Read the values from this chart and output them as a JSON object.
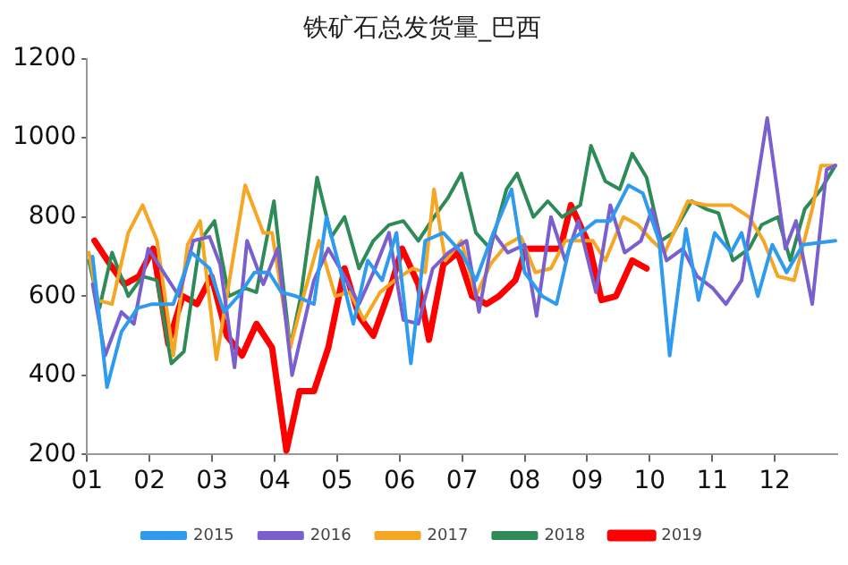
{
  "chart_data": {
    "type": "line",
    "title": "铁矿石总发货量_巴西",
    "xlim": [
      1,
      13
    ],
    "xticks": [
      {
        "value": 1,
        "label": "01"
      },
      {
        "value": 2,
        "label": "02"
      },
      {
        "value": 3,
        "label": "03"
      },
      {
        "value": 4,
        "label": "04"
      },
      {
        "value": 5,
        "label": "05"
      },
      {
        "value": 6,
        "label": "06"
      },
      {
        "value": 7,
        "label": "07"
      },
      {
        "value": 8,
        "label": "08"
      },
      {
        "value": 9,
        "label": "09"
      },
      {
        "value": 10,
        "label": "10"
      },
      {
        "value": 11,
        "label": "11"
      },
      {
        "value": 12,
        "label": "12"
      }
    ],
    "ylim": [
      200,
      1200
    ],
    "yticks": [
      200,
      400,
      600,
      800,
      1000,
      1200
    ],
    "grid": false,
    "legend": "bottom",
    "marker": "none",
    "line_style": "solid",
    "series": [
      {
        "name": "2015",
        "color": "#2e9bef",
        "x": [
          1.09,
          1.32,
          1.55,
          1.81,
          2.04,
          2.38,
          2.67,
          2.96,
          3.19,
          3.42,
          3.68,
          3.91,
          4.11,
          4.34,
          4.63,
          4.83,
          5.06,
          5.26,
          5.49,
          5.72,
          5.95,
          6.18,
          6.41,
          6.7,
          6.99,
          7.22,
          7.5,
          7.79,
          8.0,
          8.28,
          8.51,
          8.74,
          9.14,
          9.37,
          9.66,
          9.89,
          10.15,
          10.32,
          10.58,
          10.78,
          11.04,
          11.3,
          11.47,
          11.73,
          11.96,
          12.19,
          12.45,
          12.97
        ],
        "values": [
          700,
          370,
          510,
          570,
          580,
          580,
          710,
          670,
          560,
          600,
          660,
          660,
          610,
          600,
          580,
          800,
          660,
          530,
          690,
          640,
          760,
          430,
          740,
          760,
          710,
          640,
          760,
          870,
          660,
          600,
          580,
          740,
          790,
          790,
          880,
          860,
          740,
          450,
          770,
          590,
          760,
          710,
          760,
          600,
          730,
          660,
          730,
          740
        ]
      },
      {
        "name": "2016",
        "color": "#7a5fcf",
        "x": [
          1.09,
          1.29,
          1.55,
          1.75,
          1.98,
          2.47,
          2.7,
          2.96,
          3.13,
          3.36,
          3.56,
          3.82,
          4.05,
          4.28,
          4.63,
          4.86,
          5.12,
          5.35,
          5.58,
          5.83,
          6.06,
          6.3,
          6.53,
          6.78,
          7.07,
          7.27,
          7.5,
          7.73,
          8.0,
          8.19,
          8.42,
          8.65,
          8.86,
          9.14,
          9.37,
          9.6,
          9.86,
          10.04,
          10.27,
          10.53,
          10.76,
          11.01,
          11.22,
          11.47,
          11.88,
          12.17,
          12.34,
          12.6,
          12.83,
          12.97
        ],
        "values": [
          630,
          450,
          560,
          530,
          720,
          600,
          740,
          750,
          680,
          420,
          740,
          630,
          720,
          400,
          640,
          720,
          650,
          580,
          660,
          760,
          540,
          530,
          670,
          710,
          740,
          560,
          760,
          710,
          730,
          550,
          800,
          690,
          790,
          610,
          830,
          710,
          740,
          820,
          690,
          720,
          650,
          620,
          580,
          640,
          1050,
          720,
          790,
          580,
          920,
          930
        ]
      },
      {
        "name": "2017",
        "color": "#f5a623",
        "x": [
          1.03,
          1.17,
          1.4,
          1.66,
          1.89,
          2.12,
          2.38,
          2.61,
          2.81,
          3.07,
          3.33,
          3.53,
          3.82,
          3.96,
          4.25,
          4.48,
          4.71,
          4.97,
          5.2,
          5.43,
          5.69,
          5.92,
          6.21,
          6.41,
          6.55,
          6.73,
          6.99,
          7.22,
          7.45,
          7.71,
          7.94,
          8.17,
          8.42,
          8.65,
          9.09,
          9.29,
          9.58,
          9.81,
          10.04,
          10.24,
          10.61,
          10.9,
          11.3,
          11.59,
          11.82,
          12.05,
          12.31,
          12.6,
          12.74,
          12.97
        ],
        "values": [
          710,
          590,
          580,
          760,
          830,
          740,
          450,
          730,
          790,
          440,
          690,
          880,
          760,
          760,
          470,
          610,
          740,
          600,
          610,
          540,
          610,
          640,
          670,
          660,
          870,
          690,
          740,
          600,
          680,
          730,
          750,
          660,
          670,
          740,
          740,
          690,
          800,
          780,
          740,
          710,
          840,
          830,
          830,
          800,
          740,
          650,
          640,
          820,
          930,
          930
        ]
      },
      {
        "name": "2018",
        "color": "#2e8b57",
        "x": [
          1.03,
          1.2,
          1.4,
          1.66,
          1.89,
          2.12,
          2.35,
          2.55,
          2.81,
          3.04,
          3.27,
          3.53,
          3.71,
          3.99,
          4.25,
          4.42,
          4.68,
          4.91,
          5.12,
          5.35,
          5.58,
          5.83,
          6.06,
          6.3,
          6.55,
          6.78,
          6.99,
          7.22,
          7.45,
          7.71,
          7.88,
          8.14,
          8.37,
          8.6,
          8.89,
          9.06,
          9.29,
          9.52,
          9.72,
          9.95,
          10.18,
          10.38,
          10.67,
          10.9,
          11.1,
          11.33,
          11.59,
          11.79,
          12.05,
          12.25,
          12.48,
          12.74,
          12.97
        ],
        "values": [
          690,
          570,
          710,
          600,
          650,
          640,
          430,
          460,
          740,
          790,
          600,
          620,
          610,
          840,
          470,
          600,
          900,
          750,
          800,
          670,
          740,
          780,
          790,
          740,
          800,
          850,
          910,
          760,
          720,
          870,
          910,
          800,
          840,
          800,
          830,
          980,
          890,
          870,
          960,
          900,
          740,
          760,
          840,
          820,
          810,
          690,
          720,
          780,
          800,
          690,
          820,
          870,
          930
        ]
      },
      {
        "name": "2019",
        "color": "#ff0000",
        "x": [
          1.12,
          1.37,
          1.6,
          1.83,
          2.06,
          2.3,
          2.53,
          2.76,
          2.99,
          3.24,
          3.48,
          3.71,
          3.96,
          4.19,
          4.4,
          4.63,
          4.86,
          5.12,
          5.35,
          5.58,
          5.83,
          6.04,
          6.3,
          6.47,
          6.7,
          6.93,
          7.16,
          7.39,
          7.59,
          7.85,
          8.02,
          8.57,
          8.74,
          9.03,
          9.23,
          9.46,
          9.72,
          9.95
        ],
        "values": [
          740,
          680,
          630,
          650,
          720,
          480,
          600,
          580,
          650,
          500,
          450,
          530,
          470,
          210,
          360,
          360,
          470,
          670,
          550,
          500,
          610,
          720,
          630,
          490,
          680,
          710,
          600,
          580,
          600,
          640,
          720,
          720,
          830,
          730,
          590,
          600,
          690,
          670
        ]
      }
    ]
  }
}
